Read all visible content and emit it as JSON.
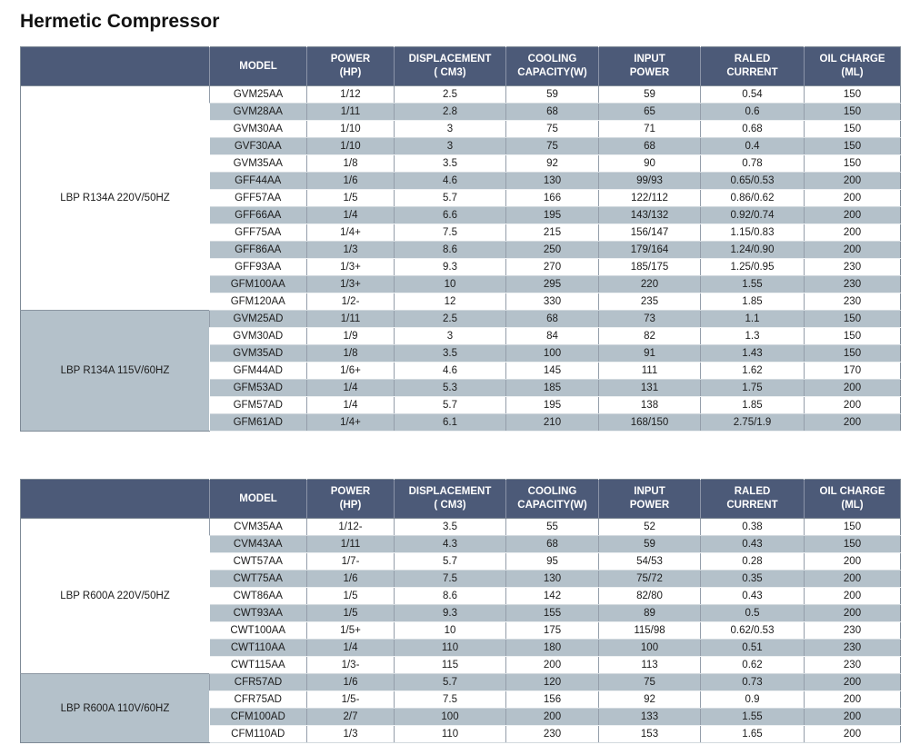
{
  "page": {
    "title": "Hermetic Compressor"
  },
  "colors": {
    "header_bg": "#4c5a78",
    "header_text": "#ffffff",
    "row_shaded": "#b4c1ca",
    "row_white": "#ffffff",
    "grid_line": "#949eaa",
    "outer_border": "#7e8a96",
    "body_text": "#1c1c1c"
  },
  "columns": [
    {
      "line1": "MODEL",
      "line2": ""
    },
    {
      "line1": "POWER",
      "line2": "(HP)"
    },
    {
      "line1": "DISPLACEMENT",
      "line2": "( CM3)"
    },
    {
      "line1": "COOLING",
      "line2": "CAPACITY(W)"
    },
    {
      "line1": "INPUT",
      "line2": "POWER"
    },
    {
      "line1": "RALED",
      "line2": "CURRENT"
    },
    {
      "line1": "OIL CHARGE",
      "line2": "(ML)"
    }
  ],
  "tables": [
    {
      "groups": [
        {
          "label": "LBP R134A 220V/50HZ",
          "shaded": false,
          "rows": [
            [
              "GVM25AA",
              "1/12",
              "2.5",
              "59",
              "59",
              "0.54",
              "150"
            ],
            [
              "GVM28AA",
              "1/11",
              "2.8",
              "68",
              "65",
              "0.6",
              "150"
            ],
            [
              "GVM30AA",
              "1/10",
              "3",
              "75",
              "71",
              "0.68",
              "150"
            ],
            [
              "GVF30AA",
              "1/10",
              "3",
              "75",
              "68",
              "0.4",
              "150"
            ],
            [
              "GVM35AA",
              "1/8",
              "3.5",
              "92",
              "90",
              "0.78",
              "150"
            ],
            [
              "GFF44AA",
              "1/6",
              "4.6",
              "130",
              "99/93",
              "0.65/0.53",
              "200"
            ],
            [
              "GFF57AA",
              "1/5",
              "5.7",
              "166",
              "122/112",
              "0.86/0.62",
              "200"
            ],
            [
              "GFF66AA",
              "1/4",
              "6.6",
              "195",
              "143/132",
              "0.92/0.74",
              "200"
            ],
            [
              "GFF75AA",
              "1/4+",
              "7.5",
              "215",
              "156/147",
              "1.15/0.83",
              "200"
            ],
            [
              "GFF86AA",
              "1/3",
              "8.6",
              "250",
              "179/164",
              "1.24/0.90",
              "200"
            ],
            [
              "GFF93AA",
              "1/3+",
              "9.3",
              "270",
              "185/175",
              "1.25/0.95",
              "230"
            ],
            [
              "GFM100AA",
              "1/3+",
              "10",
              "295",
              "220",
              "1.55",
              "230"
            ],
            [
              "GFM120AA",
              "1/2-",
              "12",
              "330",
              "235",
              "1.85",
              "230"
            ]
          ]
        },
        {
          "label": "LBP R134A 115V/60HZ",
          "shaded": true,
          "rows": [
            [
              "GVM25AD",
              "1/11",
              "2.5",
              "68",
              "73",
              "1.1",
              "150"
            ],
            [
              "GVM30AD",
              "1/9",
              "3",
              "84",
              "82",
              "1.3",
              "150"
            ],
            [
              "GVM35AD",
              "1/8",
              "3.5",
              "100",
              "91",
              "1.43",
              "150"
            ],
            [
              "GFM44AD",
              "1/6+",
              "4.6",
              "145",
              "111",
              "1.62",
              "170"
            ],
            [
              "GFM53AD",
              "1/4",
              "5.3",
              "185",
              "131",
              "1.75",
              "200"
            ],
            [
              "GFM57AD",
              "1/4",
              "5.7",
              "195",
              "138",
              "1.85",
              "200"
            ],
            [
              "GFM61AD",
              "1/4+",
              "6.1",
              "210",
              "168/150",
              "2.75/1.9",
              "200"
            ]
          ]
        }
      ]
    },
    {
      "groups": [
        {
          "label": "LBP R600A 220V/50HZ",
          "shaded": false,
          "rows": [
            [
              "CVM35AA",
              "1/12-",
              "3.5",
              "55",
              "52",
              "0.38",
              "150"
            ],
            [
              "CVM43AA",
              "1/11",
              "4.3",
              "68",
              "59",
              "0.43",
              "150"
            ],
            [
              "CWT57AA",
              "1/7-",
              "5.7",
              "95",
              "54/53",
              "0.28",
              "200"
            ],
            [
              "CWT75AA",
              "1/6",
              "7.5",
              "130",
              "75/72",
              "0.35",
              "200"
            ],
            [
              "CWT86AA",
              "1/5",
              "8.6",
              "142",
              "82/80",
              "0.43",
              "200"
            ],
            [
              "CWT93AA",
              "1/5",
              "9.3",
              "155",
              "89",
              "0.5",
              "200"
            ],
            [
              "CWT100AA",
              "1/5+",
              "10",
              "175",
              "115/98",
              "0.62/0.53",
              "230"
            ],
            [
              "CWT110AA",
              "1/4",
              "110",
              "180",
              "100",
              "0.51",
              "230"
            ],
            [
              "CWT115AA",
              "1/3-",
              "115",
              "200",
              "113",
              "0.62",
              "230"
            ]
          ]
        },
        {
          "label": "LBP R600A 110V/60HZ",
          "shaded": true,
          "rows": [
            [
              "CFR57AD",
              "1/6",
              "5.7",
              "120",
              "75",
              "0.73",
              "200"
            ],
            [
              "CFR75AD",
              "1/5-",
              "7.5",
              "156",
              "92",
              "0.9",
              "200"
            ],
            [
              "CFM100AD",
              "2/7",
              "100",
              "200",
              "133",
              "1.55",
              "200"
            ],
            [
              "CFM110AD",
              "1/3",
              "110",
              "230",
              "153",
              "1.65",
              "200"
            ]
          ]
        }
      ]
    }
  ]
}
